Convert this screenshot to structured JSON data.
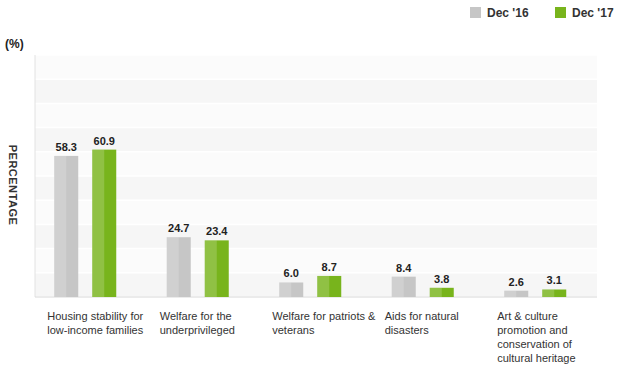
{
  "chart_data": {
    "type": "bar",
    "y_label": "PERCENTAGE",
    "annotations": [
      "(%)"
    ],
    "categories": [
      "Housing stability for low-income families",
      "Welfare for the underprivileged",
      "Welfare for patriots & veterans",
      "Aids for natural disasters",
      "Art & culture promotion and conservation of cultural heritage"
    ],
    "series": [
      {
        "name": "Dec '16",
        "color": "#c6c6c6",
        "values": [
          58.3,
          24.7,
          6.0,
          8.4,
          2.6
        ],
        "value_labels": [
          "58.3",
          "24.7",
          "6.0",
          "8.4",
          "2.6"
        ]
      },
      {
        "name": "Dec '17",
        "color": "#78b41c",
        "values": [
          60.9,
          23.4,
          8.7,
          3.8,
          3.1
        ]
      }
    ],
    "ylim": [
      0,
      100
    ],
    "yticks": [
      0,
      10,
      20,
      30,
      40,
      50,
      60,
      70,
      80,
      90,
      100
    ],
    "grid": true,
    "tick_labels": false,
    "data_labels": true,
    "legend": "top-right"
  }
}
